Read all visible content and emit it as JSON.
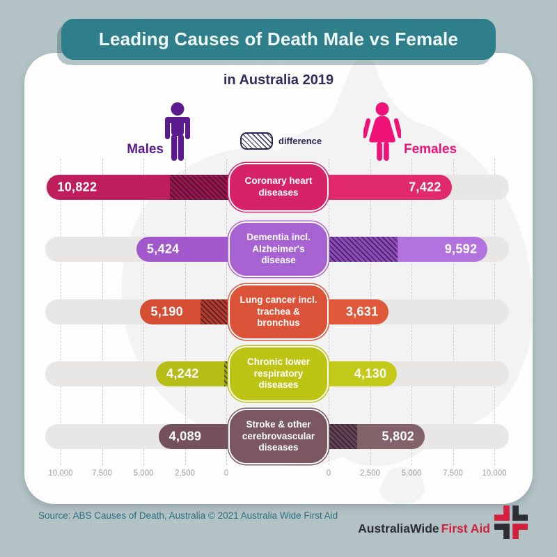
{
  "page": {
    "background": "#b3c2c5",
    "card_bg": "#fdfdfd"
  },
  "header": {
    "title": "Leading Causes of Death Male vs Female",
    "subtitle": "in Australia 2019",
    "banner_color": "#2f7e8b",
    "title_color": "#f0f9f9",
    "subtitle_color": "#332a5f"
  },
  "legend": {
    "males_label": "Males",
    "females_label": "Females",
    "difference_label": "difference",
    "male_color": "#5b1b8f",
    "female_color": "#ef1277",
    "difference_outline": "#2b2356"
  },
  "axis": {
    "left_ticks": [
      "10,000",
      "7,500",
      "5,000",
      "2,500",
      "0"
    ],
    "right_ticks": [
      "0",
      "2,500",
      "5,000",
      "7,500",
      "10,000"
    ],
    "max": 10000
  },
  "chart_data": {
    "type": "bar",
    "variant": "butterfly",
    "title": "Leading Causes of Death Male vs Female",
    "subtitle": "in Australia 2019",
    "categories": [
      "Coronary heart diseases",
      "Dementia incl. Alzheimer's disease",
      "Lung cancer incl. trachea & bronchus",
      "Chronic lower respiratory diseases",
      "Stroke & other cerebrovascular diseases"
    ],
    "series": [
      {
        "name": "Males",
        "values": [
          10822,
          5424,
          5190,
          4242,
          4089
        ]
      },
      {
        "name": "Females",
        "values": [
          7422,
          9592,
          3631,
          4130,
          5802
        ]
      }
    ],
    "xlim": [
      0,
      10000
    ],
    "axis_ticks": [
      0,
      2500,
      5000,
      7500,
      10000
    ],
    "legend": [
      "Males",
      "Females",
      "difference"
    ],
    "grid": "dashed-vertical"
  },
  "rows": [
    {
      "cause": "Coronary heart diseases",
      "male_display": "10,822",
      "female_display": "7,422",
      "male_value": 10822,
      "female_value": 7422,
      "colors": {
        "male": "#c01d5c",
        "female": "#e02a6c",
        "box": "#d62368",
        "hatch": "#9d1448"
      }
    },
    {
      "cause": "Dementia incl. Alzheimer's disease",
      "male_display": "5,424",
      "female_display": "9,592",
      "male_value": 5424,
      "female_value": 9592,
      "colors": {
        "male": "#a158cb",
        "female": "#b273de",
        "box": "#a763d2",
        "hatch": "#8e49b8"
      }
    },
    {
      "cause": "Lung cancer incl. trachea & bronchus",
      "male_display": "5,190",
      "female_display": "3,631",
      "male_value": 5190,
      "female_value": 3631,
      "colors": {
        "male": "#d54d32",
        "female": "#e0593c",
        "box": "#da5338",
        "hatch": "#b53c24"
      }
    },
    {
      "cause": "Chronic lower respiratory diseases",
      "male_display": "4,242",
      "female_display": "4,130",
      "male_value": 4242,
      "female_value": 4130,
      "colors": {
        "male": "#b7bd17",
        "female": "#c4ca1a",
        "box": "#bdc414",
        "hatch": "#a0a512"
      }
    },
    {
      "cause": "Stroke & other cerebrovascular diseases",
      "male_display": "4,089",
      "female_display": "5,802",
      "male_value": 4089,
      "female_value": 5802,
      "colors": {
        "male": "#74515b",
        "female": "#836169",
        "box": "#7a5761",
        "hatch": "#64434e"
      }
    }
  ],
  "footer": {
    "source": "Source: ABS Causes of Death, Australia © 2021 Australia Wide First Aid",
    "logo_text_1": "AustraliaWide",
    "logo_text_2": "First Aid",
    "logo_dark": "#2e2d33",
    "logo_red": "#d2203e"
  }
}
